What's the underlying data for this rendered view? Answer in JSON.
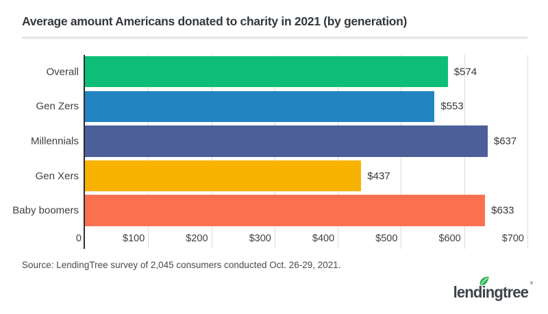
{
  "title": "Average amount Americans donated to charity in 2021 (by generation)",
  "source_note": "Source: LendingTree survey of 2,045 consumers conducted Oct. 26-29, 2021.",
  "logo": {
    "text": "lendingtree",
    "registered_mark": "®",
    "leaf_color": "#2fb457",
    "text_color": "#3e444b"
  },
  "colors": {
    "axis_line": "#2b2b2b",
    "gridline": "#dbdbdb",
    "divider": "#e8e8e8",
    "title_text": "#33383d",
    "label_text": "#3c4043"
  },
  "chart_data": {
    "type": "bar",
    "orientation": "horizontal",
    "title": "Average amount Americans donated to charity in 2021 (by generation)",
    "categories": [
      "Overall",
      "Gen Zers",
      "Millennials",
      "Gen Xers",
      "Baby boomers"
    ],
    "values": [
      574,
      553,
      637,
      437,
      633
    ],
    "value_labels": [
      "$574",
      "$553",
      "$637",
      "$437",
      "$633"
    ],
    "bar_colors": [
      "#0cbe77",
      "#2285c1",
      "#4c5f99",
      "#f8b200",
      "#fb7150"
    ],
    "xlim": [
      0,
      700
    ],
    "x_ticks": [
      0,
      100,
      200,
      300,
      400,
      500,
      600,
      700
    ],
    "x_tick_labels": [
      "0",
      "$100",
      "$200",
      "$300",
      "$400",
      "$500",
      "$600",
      "$700"
    ],
    "xlabel": "",
    "ylabel": "",
    "grid": "vertical-only",
    "legend": "none"
  }
}
